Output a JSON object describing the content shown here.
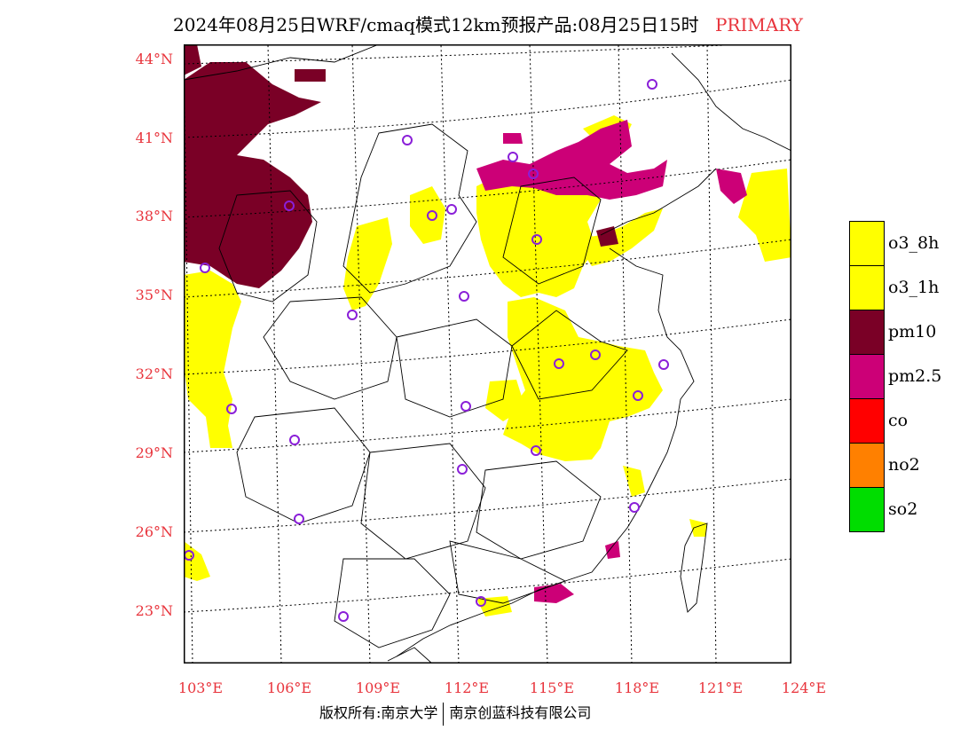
{
  "title": {
    "main": "2024年08月25日WRF/cmaq模式12km预报产品:08月25日15时",
    "tag": "PRIMARY"
  },
  "map": {
    "lat_labels": [
      "44°N",
      "41°N",
      "38°N",
      "35°N",
      "32°N",
      "29°N",
      "26°N",
      "23°N"
    ],
    "lon_labels": [
      "103°E",
      "106°E",
      "109°E",
      "112°E",
      "115°E",
      "118°E",
      "121°E",
      "124°E"
    ],
    "station_marker_color": "#8a1fd8",
    "region_colors": {
      "o3": "#ffff00",
      "pm10": "#7a0026",
      "pm25": "#cc0077"
    }
  },
  "legend": [
    {
      "label": "o3_8h",
      "color": "#ffff00"
    },
    {
      "label": "o3_1h",
      "color": "#ffff00"
    },
    {
      "label": "pm10",
      "color": "#7a0026"
    },
    {
      "label": "pm2.5",
      "color": "#cc0077"
    },
    {
      "label": "co",
      "color": "#ff0000"
    },
    {
      "label": "no2",
      "color": "#ff8000"
    },
    {
      "label": "so2",
      "color": "#00dd00"
    }
  ],
  "footer": {
    "left": "版权所有:南京大学",
    "right": "南京创蓝科技有限公司"
  }
}
